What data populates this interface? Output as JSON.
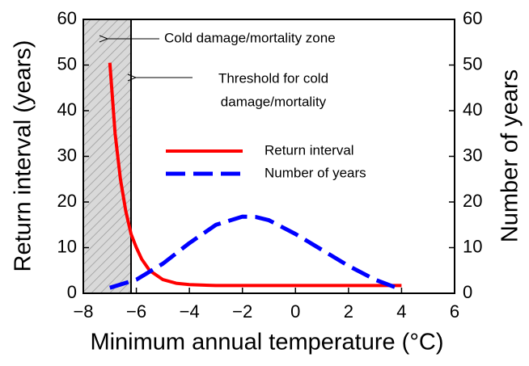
{
  "chart_data": {
    "type": "line",
    "xlabel": "Minimum annual temperature (°C)",
    "ylabel": "Return interval (years)",
    "y2label": "Number of years",
    "xlim": [
      -8,
      6
    ],
    "xticks": [
      {
        "value": -8,
        "label": "−8"
      },
      {
        "value": -6,
        "label": "−6"
      },
      {
        "value": -4,
        "label": "−4"
      },
      {
        "value": -2,
        "label": "−2"
      },
      0,
      2,
      4,
      6
    ],
    "ylim": [
      0,
      60
    ],
    "yticks": [
      0,
      10,
      20,
      30,
      40,
      50,
      60
    ],
    "y2lim": [
      0,
      60
    ],
    "y2ticks": [
      0,
      10,
      20,
      30,
      40,
      50,
      60
    ],
    "shaded_region": [
      -8,
      -6.2
    ],
    "threshold": -6.2,
    "annotations": [
      {
        "text": [
          "Cold damage/mortality zone"
        ]
      },
      {
        "text": [
          "Threshold for cold",
          "damage/mortality"
        ]
      }
    ],
    "series": [
      {
        "name": "Return interval",
        "color": "#ff0000",
        "dash": false,
        "x": [
          -7,
          -6.8,
          -6.6,
          -6.4,
          -6.2,
          -6,
          -5.8,
          -5.5,
          -5,
          -4.5,
          -4,
          -3,
          -2,
          0,
          2,
          4
        ],
        "values": [
          50.5,
          35,
          25,
          18,
          13,
          10,
          7.5,
          5,
          3,
          2.2,
          1.9,
          1.7,
          1.7,
          1.7,
          1.7,
          1.7
        ]
      },
      {
        "name": "Number of years",
        "color": "#0000ff",
        "dash": true,
        "axis": "y2",
        "x": [
          -7,
          -6,
          -5,
          -4,
          -3,
          -2,
          -1.5,
          -1,
          0,
          1,
          2,
          3,
          4
        ],
        "values": [
          1.2,
          3,
          6.5,
          11,
          15,
          16.8,
          16.7,
          16,
          13,
          9.5,
          6,
          3,
          0.8
        ]
      }
    ]
  }
}
